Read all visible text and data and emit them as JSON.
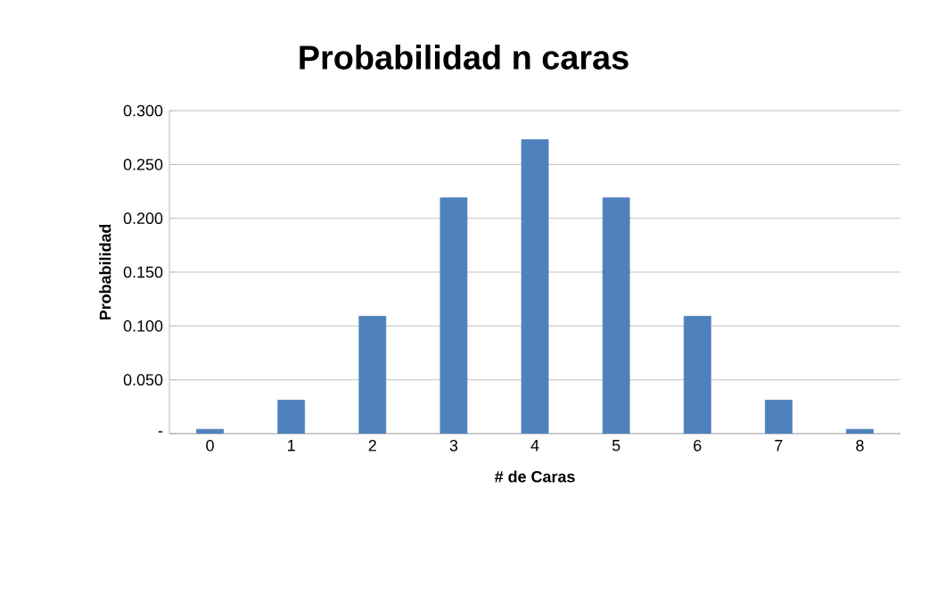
{
  "chart_data": {
    "type": "bar",
    "title": "Probabilidad n caras",
    "xlabel": "# de Caras",
    "ylabel": "Probabilidad",
    "categories": [
      "0",
      "1",
      "2",
      "3",
      "4",
      "5",
      "6",
      "7",
      "8"
    ],
    "values": [
      0.004,
      0.031,
      0.109,
      0.219,
      0.273,
      0.219,
      0.109,
      0.031,
      0.004
    ],
    "color": "#4f81bd",
    "ylim": [
      0,
      0.3
    ],
    "yticks": [
      {
        "value": 0,
        "label": "-"
      },
      {
        "value": 0.05,
        "label": "0.050"
      },
      {
        "value": 0.1,
        "label": "0.100"
      },
      {
        "value": 0.15,
        "label": "0.150"
      },
      {
        "value": 0.2,
        "label": "0.200"
      },
      {
        "value": 0.25,
        "label": "0.250"
      },
      {
        "value": 0.3,
        "label": "0.300"
      }
    ],
    "grid": "y"
  }
}
